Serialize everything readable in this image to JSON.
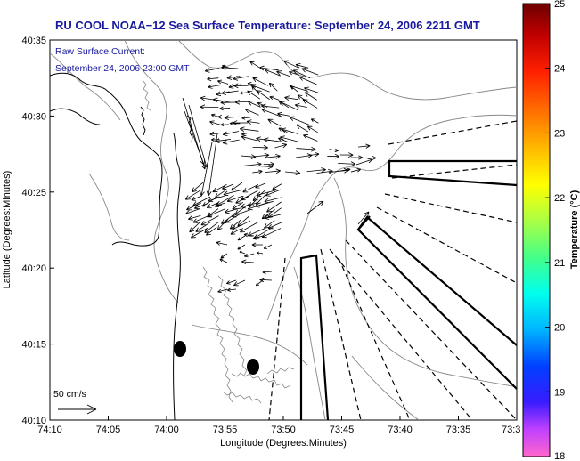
{
  "title": "RU COOL  NOAA−12  Sea Surface Temperature:  September 24, 2006 2211 GMT",
  "annotation": {
    "line1": "Raw Surface Current:",
    "line2": "September 24, 2006 23:00 GMT"
  },
  "scale_label": "50 cm/s",
  "x_axis": {
    "label": "Longitude (Degrees:Minutes)",
    "ticks": [
      "74:10",
      "74:05",
      "74:00",
      "73:55",
      "73:50",
      "73:45",
      "73:40",
      "73:35",
      "73:3"
    ]
  },
  "y_axis": {
    "label": "Latitude (Degrees:Minutes)",
    "ticks": [
      "40:35",
      "40:30",
      "40:25",
      "40:20",
      "40:15",
      "40:10"
    ]
  },
  "colorbar": {
    "label": "Temperature (°C)",
    "ticks": [
      "25",
      "24",
      "23",
      "22",
      "21",
      "20",
      "19",
      "18"
    ],
    "colors": [
      "#8b0000",
      "#ff0000",
      "#ff8c00",
      "#ffff00",
      "#66ff66",
      "#00ffff",
      "#0000ff",
      "#ff66cc"
    ]
  },
  "colors": {
    "title": "#1a1a9e",
    "coast": "#000000",
    "bathymetry": "#888888",
    "arrows": "#000000"
  }
}
